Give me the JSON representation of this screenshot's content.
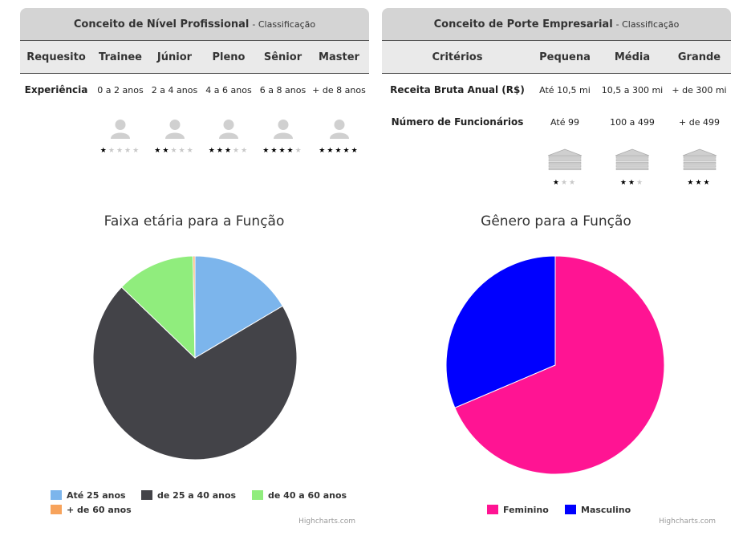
{
  "left_table": {
    "title": "Conceito de Nível Profissional",
    "subtitle": "- Classificação",
    "headers": [
      "Requesito",
      "Trainee",
      "Júnior",
      "Pleno",
      "Sênior",
      "Master"
    ],
    "row_label": "Experiência",
    "values": [
      "0 a 2 anos",
      "2 a 4 anos",
      "4 a 6 anos",
      "6 a 8 anos",
      "+ de 8 anos"
    ],
    "stars": [
      1,
      2,
      3,
      4,
      5
    ],
    "stars_max": 5,
    "icon": "person-icon"
  },
  "right_table": {
    "title": "Conceito de Porte Empresarial",
    "subtitle": "- Classificação",
    "headers": [
      "Critérios",
      "Pequena",
      "Média",
      "Grande"
    ],
    "rows": [
      {
        "label": "Receita Bruta Anual (R$)",
        "values": [
          "Até 10,5 mi",
          "10,5 a 300 mi",
          "+ de 300 mi"
        ]
      },
      {
        "label": "Número de Funcionários",
        "values": [
          "Até 99",
          "100 a 499",
          "+ de 499"
        ]
      }
    ],
    "stars": [
      1,
      2,
      3
    ],
    "stars_max": 3,
    "icon": "building-icon"
  },
  "chart_data": [
    {
      "type": "pie",
      "title": "Faixa etária para a Função",
      "categories": [
        "Até 25 anos",
        "de 25 a 40 anos",
        "de 40 a 60 anos",
        "+ de 60 anos"
      ],
      "values": [
        16.5,
        70.7,
        12.5,
        0.3
      ],
      "colors": [
        "#7cb5ec",
        "#434348",
        "#90ed7d",
        "#f7a35c"
      ],
      "legend_placement": "bottom",
      "credit": "Highcharts.com"
    },
    {
      "type": "pie",
      "title": "Gênero para a Função",
      "categories": [
        "Feminino",
        "Masculino"
      ],
      "values": [
        68.6,
        31.4
      ],
      "colors": [
        "#ff1493",
        "#0000ff"
      ],
      "legend_placement": "bottom",
      "credit": "Highcharts.com"
    }
  ]
}
